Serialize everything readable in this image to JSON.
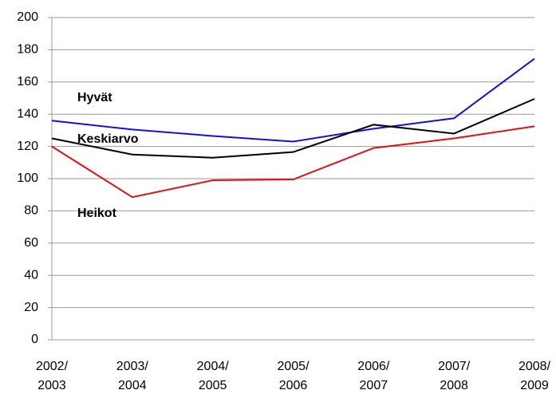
{
  "chart_data": {
    "type": "line",
    "categories": [
      "2002/ 2003",
      "2003/ 2004",
      "2004/ 2005",
      "2005/ 2006",
      "2006/ 2007",
      "2007/ 2008",
      "2008/ 2009"
    ],
    "series": [
      {
        "name": "Hyvät",
        "color": "#1010e0",
        "values": [
          136,
          130.5,
          126.5,
          123,
          131,
          137.5,
          174.5
        ]
      },
      {
        "name": "Keskiarvo",
        "color": "#000000",
        "values": [
          125,
          115,
          113,
          116.5,
          133.5,
          128,
          149.5
        ]
      },
      {
        "name": "Heikot",
        "color": "#e01010",
        "values": [
          120,
          88.5,
          99,
          99.5,
          119,
          125,
          132.5
        ]
      }
    ],
    "ylim": [
      0,
      200
    ],
    "yticks": [
      0,
      20,
      40,
      60,
      80,
      100,
      120,
      140,
      160,
      180,
      200
    ],
    "grid": true
  }
}
